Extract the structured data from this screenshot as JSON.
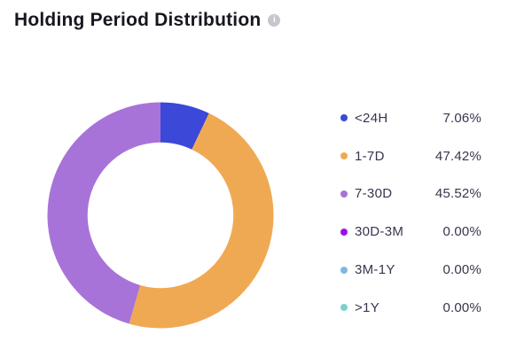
{
  "header": {
    "title": "Holding Period Distribution"
  },
  "icons": {
    "info_glyph": "i"
  },
  "chart_data": {
    "type": "pie",
    "subtype": "donut",
    "title": "Holding Period Distribution",
    "legend_position": "right",
    "start_angle_deg": 0,
    "clockwise": true,
    "inner_radius_ratio": 0.645,
    "items": [
      {
        "label": "<24H",
        "value_pct": 7.06,
        "value_label": "7.06%",
        "color": "#3B48D8"
      },
      {
        "label": "1-7D",
        "value_pct": 47.42,
        "value_label": "47.42%",
        "color": "#F0A953"
      },
      {
        "label": "7-30D",
        "value_pct": 45.52,
        "value_label": "45.52%",
        "color": "#A873D8"
      },
      {
        "label": "30D-3M",
        "value_pct": 0.0,
        "value_label": "0.00%",
        "color": "#9C10E8"
      },
      {
        "label": "3M-1Y",
        "value_pct": 0.0,
        "value_label": "0.00%",
        "color": "#7FB8E0"
      },
      {
        "label": ">1Y",
        "value_pct": 0.0,
        "value_label": "0.00%",
        "color": "#7ED0CC"
      }
    ]
  }
}
